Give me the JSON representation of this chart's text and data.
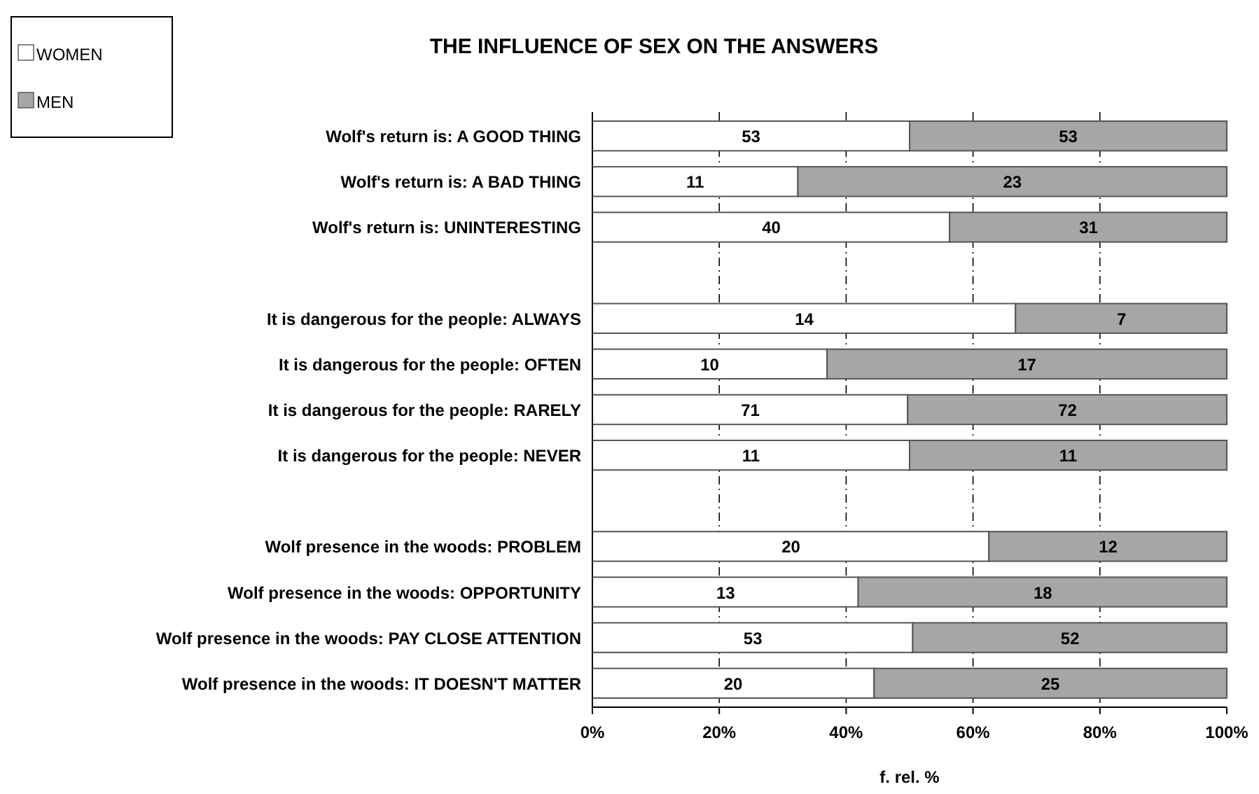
{
  "chart_data": {
    "type": "bar",
    "orientation": "horizontal",
    "stacked": true,
    "title": "THE INFLUENCE OF SEX ON THE ANSWERS",
    "xlabel": "f. rel. %",
    "categories": [
      "Wolf's return is: A GOOD THING",
      "Wolf's return is: A BAD THING",
      "Wolf's return is: UNINTERESTING",
      null,
      "It is dangerous for the people: ALWAYS",
      "It is dangerous for the people: OFTEN",
      "It is dangerous for the people: RARELY",
      "It is dangerous for the people: NEVER",
      null,
      "Wolf presence in the woods: PROBLEM",
      "Wolf presence in the woods: OPPORTUNITY",
      "Wolf presence in the woods: PAY CLOSE ATTENTION",
      "Wolf presence in the woods: IT DOESN'T MATTER"
    ],
    "series": [
      {
        "name": "WOMEN",
        "color": "#ffffff",
        "values": [
          50.0,
          32.4,
          56.3,
          null,
          66.7,
          37.0,
          49.7,
          50.0,
          null,
          62.5,
          41.9,
          50.5,
          44.4
        ]
      },
      {
        "name": "MEN",
        "color": "#a6a6a6",
        "values": [
          50.0,
          67.6,
          43.7,
          null,
          33.3,
          63.0,
          50.3,
          50.0,
          null,
          37.5,
          58.1,
          49.5,
          55.6
        ]
      }
    ],
    "annotations": [
      {
        "text": "53",
        "x": 25,
        "y": "Wolf's return is: A GOOD THING"
      },
      {
        "text": "53",
        "x": 75,
        "y": "Wolf's return is: A GOOD THING"
      },
      {
        "text": "11",
        "x": 16.2,
        "y": "Wolf's return is: A BAD THING"
      },
      {
        "text": "23",
        "x": 66.2,
        "y": "Wolf's return is: A BAD THING"
      },
      {
        "text": "40",
        "x": 28.2,
        "y": "Wolf's return is: UNINTERESTING"
      },
      {
        "text": "31",
        "x": 78.2,
        "y": "Wolf's return is: UNINTERESTING"
      },
      {
        "text": "14",
        "x": 33.4,
        "y": "It is dangerous for the people: ALWAYS"
      },
      {
        "text": "7",
        "x": 83.4,
        "y": "It is dangerous for the people: ALWAYS"
      },
      {
        "text": "10",
        "x": 18.5,
        "y": "It is dangerous for the people: OFTEN"
      },
      {
        "text": "17",
        "x": 68.5,
        "y": "It is dangerous for the people: OFTEN"
      },
      {
        "text": "71",
        "x": 24.9,
        "y": "It is dangerous for the people: RARELY"
      },
      {
        "text": "72",
        "x": 74.9,
        "y": "It is dangerous for the people: RARELY"
      },
      {
        "text": "11",
        "x": 25,
        "y": "It is dangerous for the people: NEVER"
      },
      {
        "text": "11",
        "x": 75,
        "y": "It is dangerous for the people: NEVER"
      },
      {
        "text": "20",
        "x": 31.3,
        "y": "Wolf presence in the woods: PROBLEM"
      },
      {
        "text": "12",
        "x": 81.3,
        "y": "Wolf presence in the woods: PROBLEM"
      },
      {
        "text": "13",
        "x": 21.0,
        "y": "Wolf presence in the woods: OPPORTUNITY"
      },
      {
        "text": "18",
        "x": 71.0,
        "y": "Wolf presence in the woods: OPPORTUNITY"
      },
      {
        "text": "53",
        "x": 25.3,
        "y": "Wolf presence in the woods: PAY CLOSE ATTENTION"
      },
      {
        "text": "52",
        "x": 75.3,
        "y": "Wolf presence in the woods: PAY CLOSE ATTENTION"
      },
      {
        "text": "20",
        "x": 22.2,
        "y": "Wolf presence in the woods: IT DOESN'T MATTER"
      },
      {
        "text": "25",
        "x": 72.2,
        "y": "Wolf presence in the woods: IT DOESN'T MATTER"
      }
    ],
    "xlim": [
      0,
      100
    ],
    "xticks": [
      {
        "value": 0,
        "label": "0%"
      },
      {
        "value": 20,
        "label": "20%"
      },
      {
        "value": 40,
        "label": "40%"
      },
      {
        "value": 60,
        "label": "60%"
      },
      {
        "value": 80,
        "label": "80%"
      },
      {
        "value": 100,
        "label": "100%"
      }
    ],
    "grid": "x",
    "legend": "top left"
  }
}
